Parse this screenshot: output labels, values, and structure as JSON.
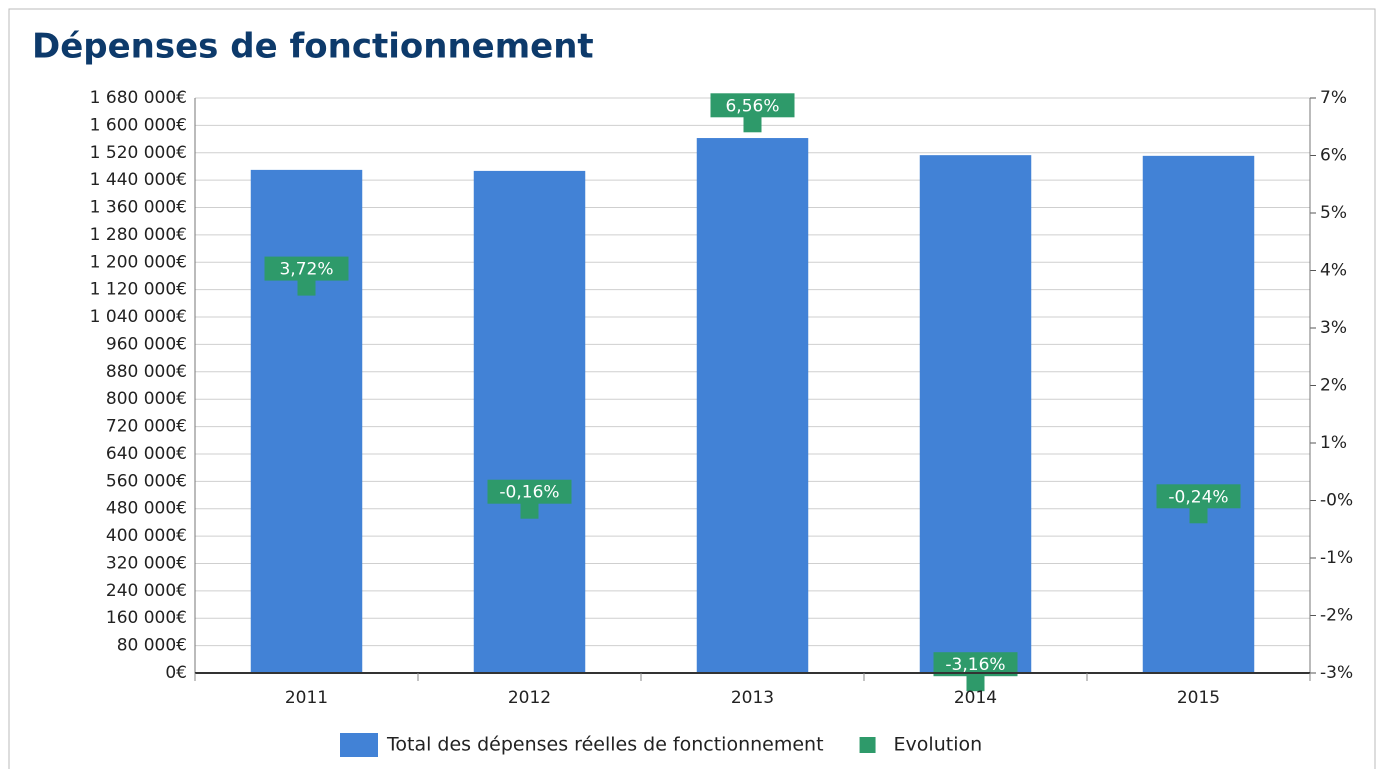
{
  "chart_data": {
    "type": "bar",
    "title": "Dépenses de fonctionnement",
    "categories": [
      "2011",
      "2012",
      "2013",
      "2014",
      "2015"
    ],
    "series": [
      {
        "name": "Total des dépenses réelles de fonctionnement",
        "color": "#4282d6",
        "axis": "y",
        "values": [
          1470000,
          1467000,
          1563000,
          1513000,
          1511000
        ]
      },
      {
        "name": "Evolution",
        "type": "scatter",
        "color": "#2e9a6a",
        "axis": "y2",
        "values": [
          3.72,
          -0.16,
          6.56,
          -3.16,
          -0.24
        ],
        "value_labels": [
          "3,72%",
          "-0,16%",
          "6,56%",
          "-3,16%",
          "-0,24%"
        ]
      }
    ],
    "ylim": [
      0,
      1680000
    ],
    "yticks": [
      {
        "value": 0,
        "label": "0€"
      },
      {
        "value": 80000,
        "label": "80 000€"
      },
      {
        "value": 160000,
        "label": "160 000€"
      },
      {
        "value": 240000,
        "label": "240 000€"
      },
      {
        "value": 320000,
        "label": "320 000€"
      },
      {
        "value": 400000,
        "label": "400 000€"
      },
      {
        "value": 480000,
        "label": "480 000€"
      },
      {
        "value": 560000,
        "label": "560 000€"
      },
      {
        "value": 640000,
        "label": "640 000€"
      },
      {
        "value": 720000,
        "label": "720 000€"
      },
      {
        "value": 800000,
        "label": "800 000€"
      },
      {
        "value": 880000,
        "label": "880 000€"
      },
      {
        "value": 960000,
        "label": "960 000€"
      },
      {
        "value": 1040000,
        "label": "1 040 000€"
      },
      {
        "value": 1120000,
        "label": "1 120 000€"
      },
      {
        "value": 1200000,
        "label": "1 200 000€"
      },
      {
        "value": 1280000,
        "label": "1 280 000€"
      },
      {
        "value": 1360000,
        "label": "1 360 000€"
      },
      {
        "value": 1440000,
        "label": "1 440 000€"
      },
      {
        "value": 1520000,
        "label": "1 520 000€"
      },
      {
        "value": 1600000,
        "label": "1 600 000€"
      },
      {
        "value": 1680000,
        "label": "1 680 000€"
      }
    ],
    "y2lim": [
      -3,
      7
    ],
    "y2ticks": [
      {
        "value": -3,
        "label": "-3%"
      },
      {
        "value": -2,
        "label": "-2%"
      },
      {
        "value": -1,
        "label": "-1%"
      },
      {
        "value": 0,
        "label": "-0%"
      },
      {
        "value": 1,
        "label": "1%"
      },
      {
        "value": 2,
        "label": "2%"
      },
      {
        "value": 3,
        "label": "3%"
      },
      {
        "value": 4,
        "label": "4%"
      },
      {
        "value": 5,
        "label": "5%"
      },
      {
        "value": 6,
        "label": "6%"
      },
      {
        "value": 7,
        "label": "7%"
      }
    ],
    "grid": true,
    "legend": "bottom"
  }
}
